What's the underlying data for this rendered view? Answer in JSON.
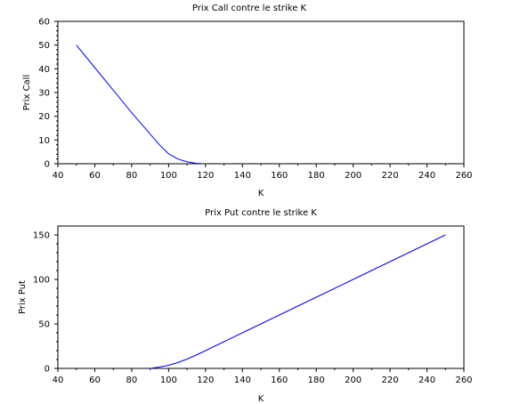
{
  "chart_data": [
    {
      "type": "line",
      "title": "Prix Call contre le strike K",
      "xlabel": "K",
      "ylabel": "Prix Call",
      "xlim": [
        40,
        260
      ],
      "ylim": [
        0,
        60
      ],
      "xticks": [
        40,
        60,
        80,
        100,
        120,
        140,
        160,
        180,
        200,
        220,
        240,
        260
      ],
      "yticks": [
        0,
        10,
        20,
        30,
        40,
        50,
        60
      ],
      "grid": false,
      "series": [
        {
          "color": "#0000ff",
          "x": [
            50,
            60,
            70,
            80,
            90,
            95,
            100,
            105,
            110,
            115,
            118
          ],
          "y": [
            50,
            40.5,
            31,
            21.5,
            12.5,
            8.0,
            4.2,
            2.0,
            0.8,
            0.2,
            0.05
          ]
        }
      ]
    },
    {
      "type": "line",
      "title": "Prix Put contre le strike K",
      "xlabel": "K",
      "ylabel": "Prix Put",
      "xlim": [
        40,
        260
      ],
      "ylim": [
        0,
        160
      ],
      "xticks": [
        40,
        60,
        80,
        100,
        120,
        140,
        160,
        180,
        200,
        220,
        240,
        260
      ],
      "yticks": [
        0,
        50,
        100,
        150
      ],
      "grid": false,
      "series": [
        {
          "color": "#0000ff",
          "x": [
            90,
            95,
            100,
            105,
            110,
            115,
            120,
            130,
            140,
            160,
            180,
            200,
            220,
            250
          ],
          "y": [
            0.0,
            1.5,
            3.5,
            6.5,
            10.5,
            15.0,
            20.0,
            30.0,
            40.0,
            60.0,
            80.0,
            100.0,
            120.0,
            150.0
          ]
        }
      ]
    }
  ]
}
